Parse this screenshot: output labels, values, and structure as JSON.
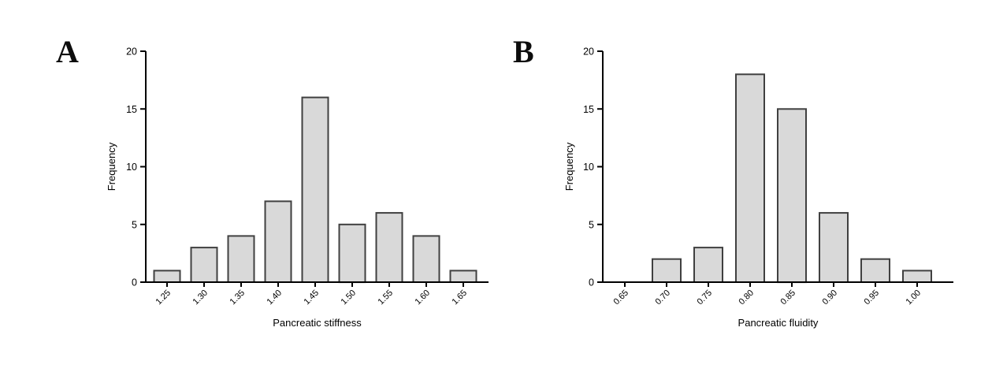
{
  "figure": {
    "background_color": "#ffffff",
    "axis_color": "#000000",
    "bar_fill_color": "#d9d9d9",
    "bar_stroke_color": "#404040"
  },
  "panels": [
    {
      "label": "A"
    },
    {
      "label": "B"
    }
  ],
  "chart_data": [
    {
      "type": "bar",
      "panel": "A",
      "title": "",
      "categories": [
        "1.25",
        "1.30",
        "1.35",
        "1.40",
        "1.45",
        "1.50",
        "1.55",
        "1.60",
        "1.65"
      ],
      "values": [
        1,
        3,
        4,
        7,
        16,
        5,
        6,
        4,
        1
      ],
      "xlabel": "Pancreatic stiffness",
      "ylabel": "Frequency",
      "ylim": [
        0,
        20
      ],
      "yticks": [
        0,
        5,
        10,
        15,
        20
      ],
      "grid": false,
      "legend": false,
      "bar_fill": "#d9d9d9",
      "bar_stroke": "#404040"
    },
    {
      "type": "bar",
      "panel": "B",
      "title": "",
      "categories": [
        "0.65",
        "0.70",
        "0.75",
        "0.80",
        "0.85",
        "0.90",
        "0.95",
        "1.00"
      ],
      "values": [
        0,
        2,
        3,
        18,
        15,
        6,
        2,
        1
      ],
      "xlabel": "Pancreatic fluidity",
      "ylabel": "Frequency",
      "ylim": [
        0,
        20
      ],
      "yticks": [
        0,
        5,
        10,
        15,
        20
      ],
      "grid": false,
      "legend": false,
      "bar_fill": "#d9d9d9",
      "bar_stroke": "#404040"
    }
  ]
}
